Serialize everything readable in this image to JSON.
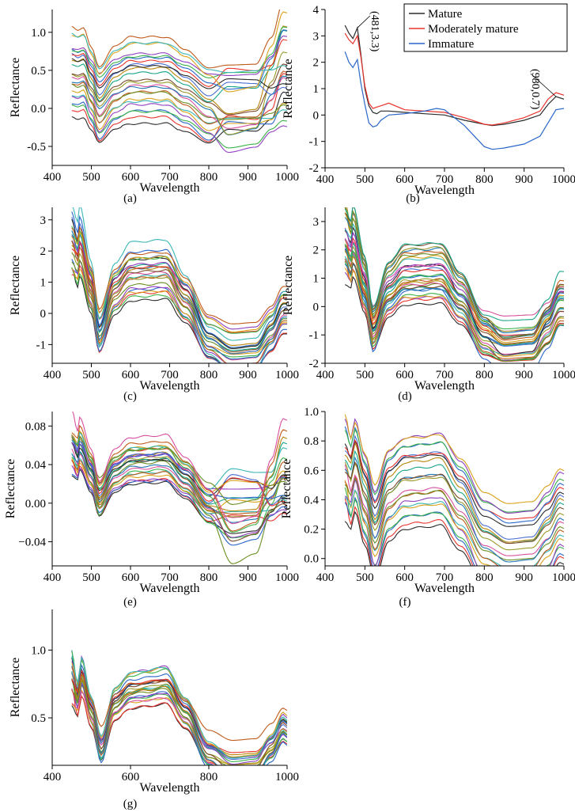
{
  "figure": {
    "description_labels": [
      "(a)",
      "(b)",
      "(c)",
      "(d)",
      "(e)",
      "(f)",
      "(g)"
    ]
  },
  "palette": [
    "#2b2b2b",
    "#e8332c",
    "#2a66c9",
    "#3bb24a",
    "#8f3fbf",
    "#d9a21a",
    "#3ab6b6",
    "#c05a1a",
    "#6b8e23",
    "#d84f9e",
    "#1f77b4",
    "#9a9a2a",
    "#7b4a2a",
    "#17a589",
    "#b8860b",
    "#4a6fd1"
  ],
  "chart_data": [
    {
      "id": "a",
      "type": "line",
      "panel_label": "(a)",
      "xlabel": "Wavelength",
      "ylabel": "Reflectance",
      "xlim": [
        400,
        1000
      ],
      "ylim": [
        -0.75,
        1.3
      ],
      "xticks": [
        400,
        500,
        600,
        700,
        800,
        900,
        1000
      ],
      "yticks": [
        -0.5,
        0.0,
        0.5,
        1.0
      ],
      "ytick_labels": [
        "-0.5",
        "0.0",
        "0.5",
        "1.0"
      ],
      "series_count": 24,
      "x_range": [
        450,
        1000
      ],
      "shape": {
        "peak": [
          480,
          0.15
        ],
        "dip": [
          520,
          -0.28
        ],
        "plateau": [
          690,
          0.05
        ],
        "trough": [
          850,
          -0.35
        ],
        "end": [
          990,
          0.2
        ]
      },
      "offset_range": [
        -0.2,
        0.85
      ],
      "trough_spread": 0.45
    },
    {
      "id": "b",
      "type": "line",
      "panel_label": "(b)",
      "xlabel": "Wavelength",
      "ylabel": "Reflectance",
      "xlim": [
        400,
        1000
      ],
      "ylim": [
        -2,
        4
      ],
      "xticks": [
        400,
        500,
        600,
        700,
        800,
        900,
        1000
      ],
      "yticks": [
        -2,
        -1,
        0,
        1,
        2,
        3,
        4
      ],
      "ytick_labels": [
        "-2",
        "-1",
        "0",
        "1",
        "2",
        "3",
        "4"
      ],
      "legend": {
        "position": "top-right",
        "entries": [
          "Mature",
          "Moderately mature",
          "Immature"
        ]
      },
      "annotations": [
        {
          "text": "(481,3.3)",
          "x": 481,
          "y": 3.3
        },
        {
          "text": "(980,0.7)",
          "x": 980,
          "y": 0.7
        }
      ],
      "series": [
        {
          "name": "Mature",
          "color": "#2b2b2b",
          "x": [
            450,
            460,
            470,
            481,
            490,
            500,
            510,
            520,
            530,
            540,
            560,
            600,
            650,
            700,
            750,
            800,
            820,
            850,
            900,
            940,
            960,
            980,
            1000
          ],
          "y": [
            3.4,
            3.1,
            2.9,
            3.3,
            2.3,
            1.0,
            0.35,
            0.1,
            0.05,
            0.15,
            0.15,
            0.1,
            0.05,
            0.0,
            -0.2,
            -0.35,
            -0.4,
            -0.35,
            -0.2,
            0.0,
            0.4,
            0.7,
            0.6
          ]
        },
        {
          "name": "Moderately mature",
          "color": "#e8332c",
          "x": [
            450,
            460,
            470,
            481,
            490,
            500,
            510,
            520,
            530,
            540,
            560,
            600,
            650,
            700,
            750,
            800,
            820,
            850,
            900,
            940,
            960,
            980,
            1000
          ],
          "y": [
            3.1,
            2.85,
            2.7,
            3.0,
            2.2,
            1.1,
            0.45,
            0.25,
            0.3,
            0.35,
            0.45,
            0.2,
            0.15,
            0.1,
            -0.1,
            -0.35,
            -0.38,
            -0.3,
            -0.1,
            0.15,
            0.6,
            0.85,
            0.75
          ]
        },
        {
          "name": "Immature",
          "color": "#2a66c9",
          "x": [
            450,
            460,
            470,
            481,
            490,
            500,
            510,
            520,
            530,
            540,
            560,
            600,
            650,
            680,
            700,
            750,
            800,
            820,
            850,
            900,
            940,
            960,
            980,
            1000
          ],
          "y": [
            2.4,
            2.0,
            1.8,
            2.1,
            1.2,
            0.4,
            -0.3,
            -0.45,
            -0.4,
            -0.2,
            0.0,
            0.05,
            0.15,
            0.25,
            0.2,
            -0.4,
            -1.2,
            -1.3,
            -1.25,
            -1.1,
            -0.8,
            -0.3,
            0.2,
            0.25
          ]
        }
      ]
    },
    {
      "id": "c",
      "type": "line",
      "panel_label": "(c)",
      "xlabel": "Wavelength",
      "ylabel": "Reflectance",
      "xlim": [
        400,
        1000
      ],
      "ylim": [
        -1.6,
        3.4
      ],
      "xticks": [
        400,
        500,
        600,
        700,
        800,
        900,
        1000
      ],
      "yticks": [
        -1,
        0,
        1,
        2,
        3
      ],
      "ytick_labels": [
        "-1",
        "0",
        "1",
        "2",
        "3"
      ],
      "series_count": 24,
      "x_range": [
        450,
        1000
      ],
      "shape": {
        "peak": [
          470,
          2.2
        ],
        "dip": [
          520,
          -0.75
        ],
        "plateau": [
          690,
          1.3
        ],
        "trough": [
          860,
          -1.35
        ],
        "end": [
          990,
          0.0
        ]
      },
      "offset_range": [
        -0.6,
        0.8
      ],
      "trough_spread": 0.12
    },
    {
      "id": "d",
      "type": "line",
      "panel_label": "(d)",
      "xlabel": "Wavelength",
      "ylabel": "Reflectance",
      "xlim": [
        400,
        1000
      ],
      "ylim": [
        -2,
        3.5
      ],
      "xticks": [
        400,
        500,
        600,
        700,
        800,
        900,
        1000
      ],
      "yticks": [
        -2,
        -1,
        0,
        1,
        2,
        3
      ],
      "ytick_labels": [
        "-2",
        "-1",
        "0",
        "1",
        "2",
        "3"
      ],
      "series_count": 30,
      "x_range": [
        450,
        1000
      ],
      "shape": {
        "peak": [
          470,
          2.3
        ],
        "dip": [
          520,
          -0.7
        ],
        "plateau": [
          690,
          1.2
        ],
        "trough": [
          850,
          -1.3
        ],
        "end": [
          990,
          0.2
        ]
      },
      "offset_range": [
        -0.9,
        0.8
      ],
      "trough_spread": 0.25
    },
    {
      "id": "e",
      "type": "line",
      "panel_label": "(e)",
      "xlabel": "Wavelength",
      "ylabel": "Reflectance",
      "xlim": [
        400,
        1000
      ],
      "ylim": [
        -0.065,
        0.095
      ],
      "xticks": [
        400,
        500,
        600,
        700,
        800,
        900,
        1000
      ],
      "yticks": [
        -0.04,
        0.0,
        0.04,
        0.08
      ],
      "ytick_labels": [
        "−0.04",
        "0.00",
        "0.04",
        "0.08"
      ],
      "series_count": 26,
      "x_range": [
        450,
        1000
      ],
      "shape": {
        "peak": [
          470,
          0.06
        ],
        "dip": [
          520,
          0.005
        ],
        "plateau": [
          690,
          0.045
        ],
        "trough": [
          860,
          -0.01
        ],
        "end": [
          990,
          0.03
        ]
      },
      "offset_range": [
        -0.02,
        0.02
      ],
      "trough_spread": 0.035
    },
    {
      "id": "f",
      "type": "line",
      "panel_label": "(f)",
      "xlabel": "Wavelength",
      "ylabel": "Reflectance",
      "xlim": [
        400,
        1000
      ],
      "ylim": [
        -0.05,
        1.0
      ],
      "xticks": [
        400,
        500,
        600,
        700,
        800,
        900,
        1000
      ],
      "yticks": [
        0.0,
        0.2,
        0.4,
        0.6,
        0.8,
        1.0
      ],
      "ytick_labels": [
        "0.0",
        "0.2",
        "0.4",
        "0.6",
        "0.8",
        "1.0"
      ],
      "series_count": 22,
      "x_range": [
        450,
        1000
      ],
      "shape": {
        "peak": [
          475,
          0.65
        ],
        "dip": [
          525,
          0.15
        ],
        "plateau": [
          690,
          0.55
        ],
        "trough": [
          860,
          0.01
        ],
        "end": [
          990,
          0.28
        ]
      },
      "offset_range": [
        -0.3,
        0.33
      ],
      "trough_spread": 0.01
    },
    {
      "id": "g",
      "type": "line",
      "panel_label": "(g)",
      "xlabel": "Wavelength",
      "ylabel": "Reflectance",
      "xlim": [
        400,
        1000
      ],
      "ylim": [
        0.15,
        1.3
      ],
      "xticks": [
        400,
        600,
        800,
        1000
      ],
      "yticks": [
        0.5,
        1.0
      ],
      "ytick_labels": [
        "0.5",
        "1.0"
      ],
      "series_count": 24,
      "x_range": [
        450,
        1000
      ],
      "shape": {
        "peak": [
          475,
          0.8
        ],
        "dip": [
          525,
          0.3
        ],
        "plateau": [
          690,
          0.74
        ],
        "trough": [
          860,
          0.18
        ],
        "end": [
          990,
          0.45
        ]
      },
      "offset_range": [
        -0.12,
        0.1
      ],
      "trough_spread": 0.03
    }
  ]
}
